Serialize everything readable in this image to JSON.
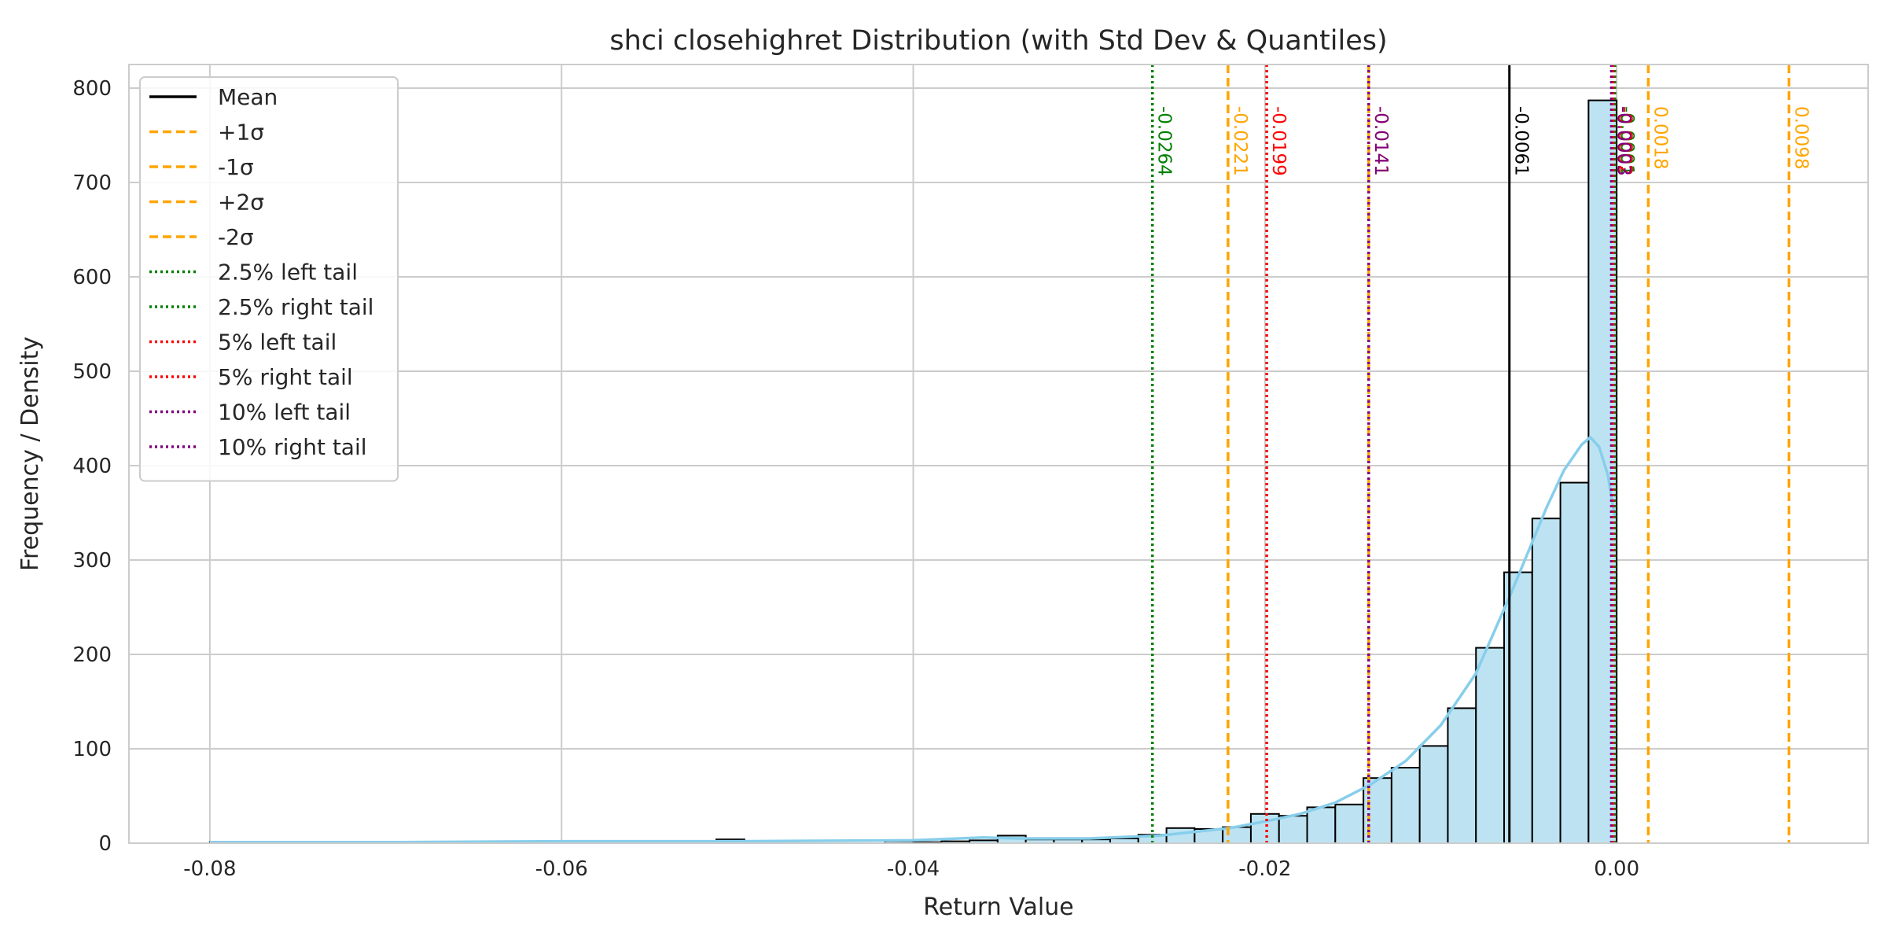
{
  "chart_data": {
    "type": "bar",
    "title": "shci closehighret Distribution (with Std Dev & Quantiles)",
    "xlabel": "Return Value",
    "ylabel": "Frequency / Density",
    "xlim": [
      -0.0846,
      0.0143
    ],
    "ylim": [
      0,
      825
    ],
    "x_ticks": [
      "-0.08",
      "-0.06",
      "-0.04",
      "-0.02",
      "0.00"
    ],
    "x_tick_values": [
      -0.08,
      -0.06,
      -0.04,
      -0.02,
      0.0
    ],
    "y_ticks": [
      "0",
      "100",
      "200",
      "300",
      "400",
      "500",
      "600",
      "700",
      "800"
    ],
    "y_tick_values": [
      0,
      100,
      200,
      300,
      400,
      500,
      600,
      700,
      800
    ],
    "grid": true,
    "legend_position": "top-left",
    "histogram": {
      "bin_start": -0.08,
      "bin_width": 0.0016,
      "counts": [
        1,
        1,
        0,
        0,
        0,
        0,
        0,
        0,
        0,
        0,
        0,
        0,
        2,
        0,
        0,
        0,
        0,
        0,
        4,
        1,
        0,
        0,
        0,
        0,
        2,
        1,
        2,
        3,
        8,
        4,
        4,
        4,
        5,
        9,
        16,
        15,
        17,
        31,
        29,
        38,
        41,
        69,
        80,
        103,
        143,
        207,
        287,
        344,
        382,
        787
      ],
      "fill": "#bde3f2",
      "edge": "#000000"
    },
    "kde": {
      "x": [
        -0.08,
        -0.07,
        -0.06,
        -0.05,
        -0.04,
        -0.036,
        -0.034,
        -0.03,
        -0.026,
        -0.022,
        -0.02,
        -0.018,
        -0.016,
        -0.014,
        -0.012,
        -0.01,
        -0.008,
        -0.006,
        -0.004,
        -0.003,
        -0.002,
        -0.0015,
        -0.001,
        -0.0005,
        -0.0001
      ],
      "y": [
        1,
        1,
        2,
        2,
        3,
        6,
        5,
        5,
        8,
        16,
        23,
        31,
        43,
        62,
        87,
        125,
        180,
        265,
        355,
        395,
        422,
        430,
        420,
        390,
        345
      ],
      "color": "#87ceeb"
    },
    "lines": [
      {
        "name": "Mean",
        "value": -0.0061,
        "label": "-0.0061",
        "color": "#000000",
        "style": "solid"
      },
      {
        "name": "+1σ",
        "value": 0.0018,
        "label": "0.0018",
        "color": "#ffa500",
        "style": "dashed"
      },
      {
        "name": "-1σ",
        "value": -0.0141,
        "label": "-0.0141",
        "color": "#ffa500",
        "style": "dashed"
      },
      {
        "name": "+2σ",
        "value": 0.0098,
        "label": "0.0098",
        "color": "#ffa500",
        "style": "dashed"
      },
      {
        "name": "-2σ",
        "value": -0.0221,
        "label": "-0.0221",
        "color": "#ffa500",
        "style": "dashed"
      },
      {
        "name": "2.5% left tail",
        "value": -0.0264,
        "label": "-0.0264",
        "color": "#008000",
        "style": "dotted"
      },
      {
        "name": "2.5% right tail",
        "value": -0.0001,
        "label": "-0.0001",
        "color": "#008000",
        "style": "dotted"
      },
      {
        "name": "5% left tail",
        "value": -0.0199,
        "label": "-0.0199",
        "color": "#ff0000",
        "style": "dotted"
      },
      {
        "name": "5% right tail",
        "value": -0.0002,
        "label": "-0.0002",
        "color": "#ff0000",
        "style": "dotted"
      },
      {
        "name": "10% left tail",
        "value": -0.0141,
        "label": "-0.0141",
        "color": "#800080",
        "style": "dotted"
      },
      {
        "name": "10% right tail",
        "value": -0.0003,
        "label": "-0.0003",
        "color": "#800080",
        "style": "dotted"
      }
    ]
  }
}
